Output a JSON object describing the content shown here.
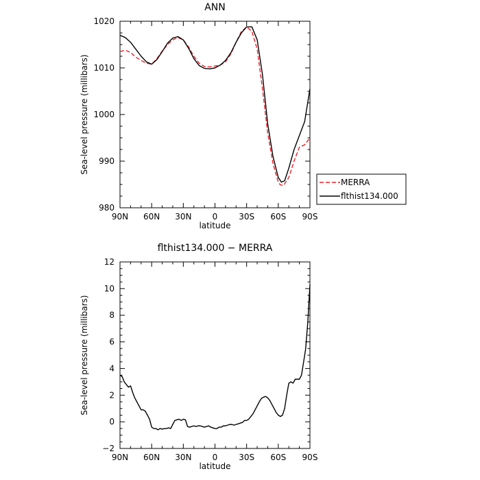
{
  "chart_data": [
    {
      "type": "line",
      "title": "ANN",
      "xlabel": "latitude",
      "ylabel": "Sea-level pressure (millibars)",
      "xlim": [
        90,
        -90
      ],
      "ylim": [
        980,
        1020
      ],
      "xticks": [
        90,
        60,
        30,
        0,
        -30,
        -60,
        -90
      ],
      "xtick_labels": [
        "90N",
        "60N",
        "30N",
        "0",
        "30S",
        "60S",
        "90S"
      ],
      "yticks": [
        980,
        990,
        1000,
        1010,
        1020
      ],
      "ytick_labels": [
        "980",
        "990",
        "1000",
        "1010",
        "1020"
      ],
      "legend": "right-bottom",
      "series": [
        {
          "name": "MERRA",
          "color": "#e8202a",
          "dash": "dashed",
          "x": [
            90,
            85,
            80,
            75,
            70,
            65,
            60,
            55,
            50,
            45,
            40,
            35,
            30,
            25,
            20,
            15,
            10,
            5,
            0,
            -5,
            -10,
            -15,
            -20,
            -25,
            -30,
            -35,
            -40,
            -45,
            -50,
            -55,
            -60,
            -62,
            -65,
            -70,
            -75,
            -80,
            -85,
            -90
          ],
          "values": [
            1013.5,
            1013.8,
            1013.3,
            1012.3,
            1011.6,
            1011.0,
            1010.8,
            1012.0,
            1013.6,
            1015.0,
            1016.0,
            1016.5,
            1016.0,
            1014.5,
            1012.5,
            1011.0,
            1010.3,
            1010.2,
            1010.4,
            1010.6,
            1011.3,
            1013.0,
            1015.5,
            1017.8,
            1018.8,
            1017.8,
            1014.0,
            1005.5,
            996.0,
            989.5,
            985.5,
            984.9,
            984.8,
            986.5,
            990.0,
            993.0,
            993.5,
            995.0
          ]
        },
        {
          "name": "flthist134.000",
          "color": "#000000",
          "dash": "solid",
          "x": [
            90,
            85,
            80,
            75,
            70,
            65,
            60,
            55,
            50,
            45,
            40,
            35,
            30,
            25,
            20,
            15,
            10,
            5,
            0,
            -5,
            -10,
            -15,
            -20,
            -25,
            -30,
            -35,
            -40,
            -45,
            -50,
            -55,
            -60,
            -63,
            -66,
            -70,
            -75,
            -80,
            -85,
            -90
          ],
          "values": [
            1017.0,
            1016.5,
            1015.5,
            1014.0,
            1012.5,
            1011.3,
            1010.8,
            1011.8,
            1013.5,
            1015.3,
            1016.4,
            1016.7,
            1016.0,
            1014.2,
            1012.0,
            1010.5,
            1009.9,
            1009.8,
            1010.0,
            1010.6,
            1011.6,
            1013.2,
            1015.5,
            1017.5,
            1018.8,
            1018.8,
            1016.0,
            1008.5,
            998.0,
            991.0,
            986.5,
            985.5,
            985.8,
            988.5,
            992.5,
            995.5,
            998.5,
            1005.5
          ]
        }
      ]
    },
    {
      "type": "line",
      "title": "flthist134.000 − MERRA",
      "xlabel": "latitude",
      "ylabel": "Sea-level pressure (millibars)",
      "xlim": [
        90,
        -90
      ],
      "ylim": [
        -2,
        12
      ],
      "xticks": [
        90,
        60,
        30,
        0,
        -30,
        -60,
        -90
      ],
      "xtick_labels": [
        "90N",
        "60N",
        "30N",
        "0",
        "30S",
        "60S",
        "90S"
      ],
      "yticks": [
        -2,
        0,
        2,
        4,
        6,
        8,
        10,
        12
      ],
      "ytick_labels": [
        "−2",
        "0",
        "2",
        "4",
        "6",
        "8",
        "10",
        "12"
      ],
      "series": [
        {
          "color": "#000000",
          "dash": "solid",
          "x": [
            90,
            88,
            86,
            84,
            82,
            80,
            78,
            76,
            74,
            72,
            70,
            68,
            66,
            64,
            62,
            60,
            58,
            56,
            54,
            52,
            50,
            48,
            46,
            44,
            42,
            40,
            38,
            36,
            34,
            32,
            30,
            28,
            26,
            24,
            22,
            20,
            18,
            16,
            14,
            12,
            10,
            8,
            6,
            4,
            2,
            0,
            -2,
            -4,
            -6,
            -8,
            -10,
            -12,
            -14,
            -16,
            -18,
            -20,
            -22,
            -24,
            -26,
            -28,
            -30,
            -32,
            -34,
            -36,
            -38,
            -40,
            -42,
            -44,
            -46,
            -48,
            -50,
            -52,
            -54,
            -56,
            -58,
            -60,
            -62,
            -64,
            -66,
            -68,
            -70,
            -72,
            -74,
            -76,
            -78,
            -80,
            -82,
            -84,
            -86,
            -88,
            -90
          ],
          "values": [
            3.5,
            3.4,
            3.0,
            2.8,
            2.6,
            2.7,
            2.2,
            1.8,
            1.5,
            1.2,
            0.9,
            0.9,
            0.8,
            0.5,
            0.2,
            -0.4,
            -0.5,
            -0.5,
            -0.6,
            -0.5,
            -0.55,
            -0.5,
            -0.5,
            -0.45,
            -0.5,
            -0.2,
            0.1,
            0.15,
            0.2,
            0.1,
            0.2,
            0.15,
            -0.35,
            -0.4,
            -0.35,
            -0.3,
            -0.35,
            -0.3,
            -0.3,
            -0.35,
            -0.4,
            -0.35,
            -0.3,
            -0.4,
            -0.45,
            -0.5,
            -0.5,
            -0.4,
            -0.4,
            -0.3,
            -0.3,
            -0.25,
            -0.2,
            -0.2,
            -0.25,
            -0.2,
            -0.15,
            -0.1,
            -0.05,
            0.1,
            0.1,
            0.2,
            0.4,
            0.6,
            0.9,
            1.2,
            1.5,
            1.75,
            1.85,
            1.9,
            1.8,
            1.6,
            1.3,
            1.0,
            0.7,
            0.5,
            0.4,
            0.5,
            1.0,
            2.0,
            2.9,
            3.0,
            2.9,
            3.2,
            3.2,
            3.2,
            3.5,
            4.5,
            5.5,
            7.5,
            10.3
          ]
        }
      ]
    }
  ]
}
